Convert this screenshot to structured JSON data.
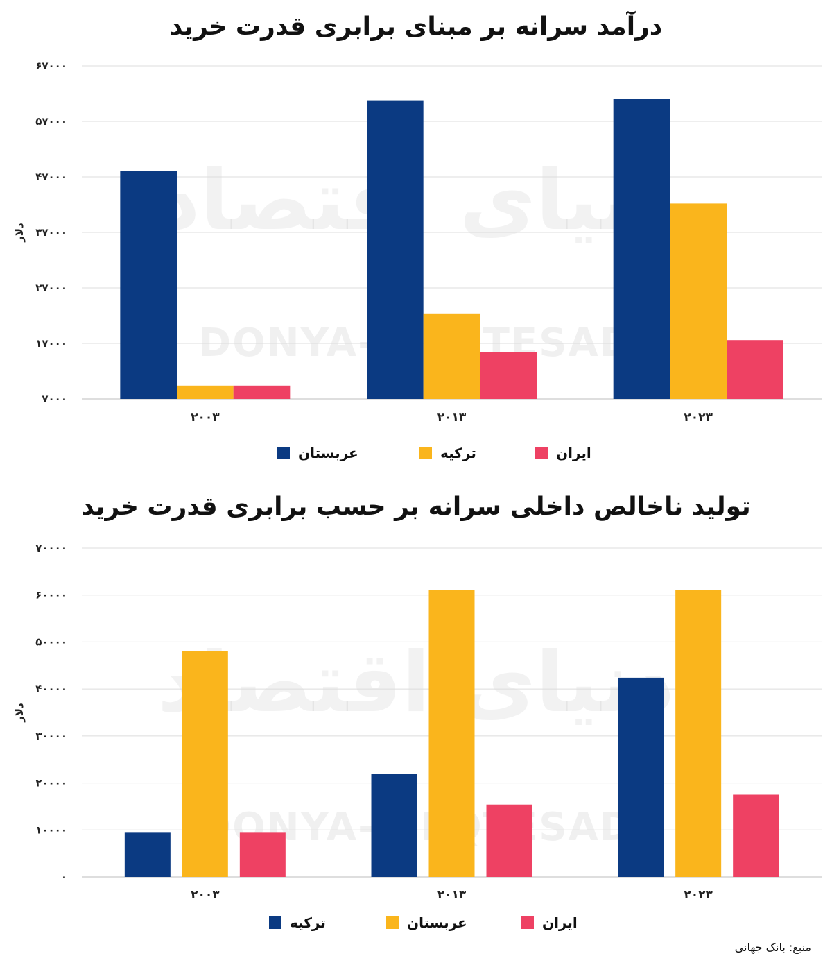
{
  "chart_data": [
    {
      "type": "bar",
      "title": "درآمد سرانه بر مبنای برابری قدرت خرید",
      "ylabel": "دلار",
      "categories": [
        "۲۰۰۳",
        "۲۰۱۳",
        "۲۰۲۳"
      ],
      "ylim": [
        7000,
        67000
      ],
      "ytick_values": [
        7000,
        17000,
        27000,
        37000,
        47000,
        57000,
        67000
      ],
      "ytick_labels": [
        "۷۰۰۰",
        "۱۷۰۰۰",
        "۲۷۰۰۰",
        "۳۷۰۰۰",
        "۴۷۰۰۰",
        "۵۷۰۰۰",
        "۶۷۰۰۰"
      ],
      "grid": true,
      "legend_position": "bottom",
      "series": [
        {
          "name": "عربستان",
          "color": "#0b3a82",
          "values": [
            48000,
            60800,
            61000
          ]
        },
        {
          "name": "ترکیه",
          "color": "#fab51c",
          "values": [
            9400,
            22400,
            42200
          ]
        },
        {
          "name": "ایران",
          "color": "#ee4163",
          "values": [
            9400,
            15400,
            17600
          ]
        }
      ]
    },
    {
      "type": "bar",
      "title": "تولید ناخالص داخلی سرانه بر حسب برابری قدرت خرید",
      "ylabel": "دلار",
      "categories": [
        "۲۰۰۳",
        "۲۰۱۳",
        "۲۰۲۳"
      ],
      "ylim": [
        0,
        70000
      ],
      "ytick_values": [
        0,
        10000,
        20000,
        30000,
        40000,
        50000,
        60000,
        70000
      ],
      "ytick_labels": [
        "۰",
        "۱۰۰۰۰",
        "۲۰۰۰۰",
        "۳۰۰۰۰",
        "۴۰۰۰۰",
        "۵۰۰۰۰",
        "۶۰۰۰۰",
        "۷۰۰۰۰"
      ],
      "grid": true,
      "legend_position": "bottom",
      "series": [
        {
          "name": "ترکیه",
          "color": "#0b3a82",
          "values": [
            9400,
            22000,
            42400
          ]
        },
        {
          "name": "عربستان",
          "color": "#fab51c",
          "values": [
            48000,
            61000,
            61100
          ]
        },
        {
          "name": "ایران",
          "color": "#ee4163",
          "values": [
            9400,
            15400,
            17500
          ]
        }
      ]
    }
  ],
  "watermark": {
    "latin": "DONYA-E-EQTESAD",
    "persian": "دنیای اقتصاد"
  },
  "source": "منبع: بانک جهانی"
}
